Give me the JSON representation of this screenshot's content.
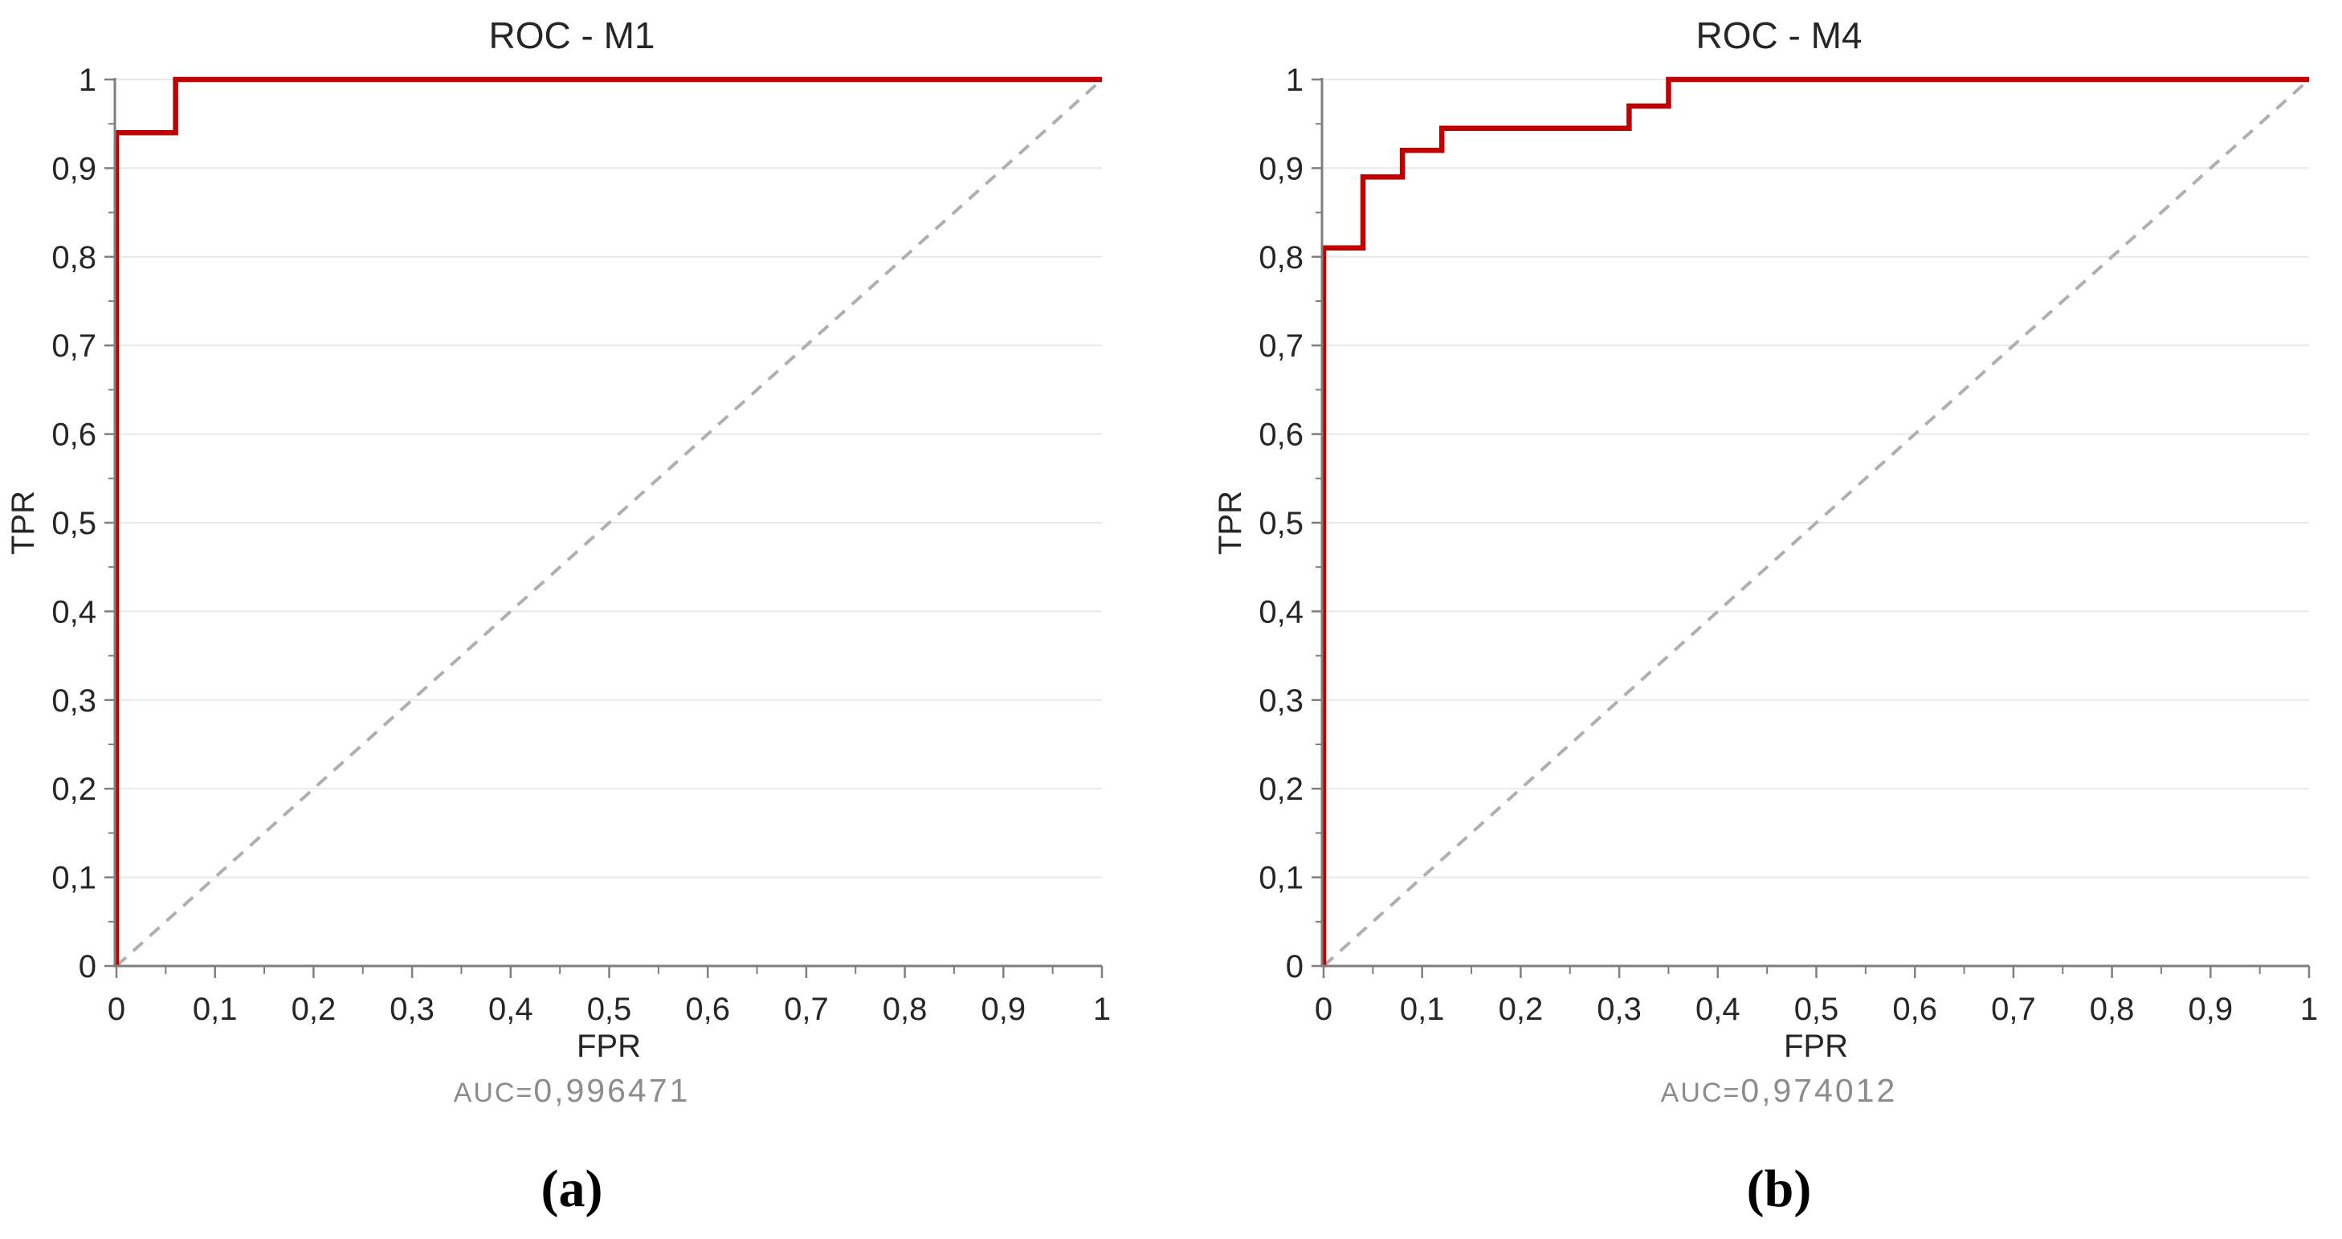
{
  "figure": {
    "background": "#FFFFFF",
    "description": "Two ROC curve panels side by side"
  },
  "colors": {
    "curve": "#C00000",
    "diagonal": "#AFAFAF",
    "grid": "#E8E8E8",
    "axis": "#7F7F7F",
    "text": "#262626",
    "muted": "#8C8C8C"
  },
  "chart_data": [
    {
      "type": "line",
      "title": "ROC - M1",
      "xlabel": "FPR",
      "ylabel": "TPR",
      "auc_prefix": "AUC=",
      "auc_value": "0,996471",
      "caption": "(a)",
      "xlim": [
        0,
        1
      ],
      "ylim": [
        0,
        1
      ],
      "grid": "horizontal-major",
      "legend": "none",
      "x_tick_values": [
        0,
        0.1,
        0.2,
        0.3,
        0.4,
        0.5,
        0.6,
        0.7,
        0.8,
        0.9,
        1
      ],
      "x_tick_labels": [
        "0",
        "0,1",
        "0,2",
        "0,3",
        "0,4",
        "0,5",
        "0,6",
        "0,7",
        "0,8",
        "0,9",
        "1"
      ],
      "y_tick_values": [
        0,
        0.1,
        0.2,
        0.3,
        0.4,
        0.5,
        0.6,
        0.7,
        0.8,
        0.9,
        1
      ],
      "y_tick_labels": [
        "0",
        "0,1",
        "0,2",
        "0,3",
        "0,4",
        "0,5",
        "0,6",
        "0,7",
        "0,8",
        "0,9",
        "1"
      ],
      "minor_tick_step": 0.05,
      "series": [
        {
          "name": "roc-curve",
          "style": "solid",
          "color_key": "curve",
          "width": 6.5,
          "points": [
            [
              0,
              0
            ],
            [
              0,
              0.94
            ],
            [
              0.06,
              0.94
            ],
            [
              0.06,
              1
            ],
            [
              1,
              1
            ]
          ]
        },
        {
          "name": "chance-diagonal",
          "style": "dashed",
          "color_key": "diagonal",
          "width": 4,
          "points": [
            [
              0,
              0
            ],
            [
              1,
              1
            ]
          ]
        }
      ]
    },
    {
      "type": "line",
      "title": "ROC - M4",
      "xlabel": "FPR",
      "ylabel": "TPR",
      "auc_prefix": "AUC=",
      "auc_value": "0,974012",
      "caption": "(b)",
      "xlim": [
        0,
        1
      ],
      "ylim": [
        0,
        1
      ],
      "grid": "horizontal-major",
      "legend": "none",
      "x_tick_values": [
        0,
        0.1,
        0.2,
        0.3,
        0.4,
        0.5,
        0.6,
        0.7,
        0.8,
        0.9,
        1
      ],
      "x_tick_labels": [
        "0",
        "0,1",
        "0,2",
        "0,3",
        "0,4",
        "0,5",
        "0,6",
        "0,7",
        "0,8",
        "0,9",
        "1"
      ],
      "y_tick_values": [
        0,
        0.1,
        0.2,
        0.3,
        0.4,
        0.5,
        0.6,
        0.7,
        0.8,
        0.9,
        1
      ],
      "y_tick_labels": [
        "0",
        "0,1",
        "0,2",
        "0,3",
        "0,4",
        "0,5",
        "0,6",
        "0,7",
        "0,8",
        "0,9",
        "1"
      ],
      "minor_tick_step": 0.05,
      "series": [
        {
          "name": "roc-curve",
          "style": "solid",
          "color_key": "curve",
          "width": 6.5,
          "points": [
            [
              0,
              0
            ],
            [
              0,
              0.81
            ],
            [
              0.04,
              0.81
            ],
            [
              0.04,
              0.89
            ],
            [
              0.08,
              0.89
            ],
            [
              0.08,
              0.92
            ],
            [
              0.12,
              0.92
            ],
            [
              0.12,
              0.945
            ],
            [
              0.31,
              0.945
            ],
            [
              0.31,
              0.97
            ],
            [
              0.35,
              0.97
            ],
            [
              0.35,
              1
            ],
            [
              1,
              1
            ]
          ]
        },
        {
          "name": "chance-diagonal",
          "style": "dashed",
          "color_key": "diagonal",
          "width": 4,
          "points": [
            [
              0,
              0
            ],
            [
              1,
              1
            ]
          ]
        }
      ]
    }
  ]
}
